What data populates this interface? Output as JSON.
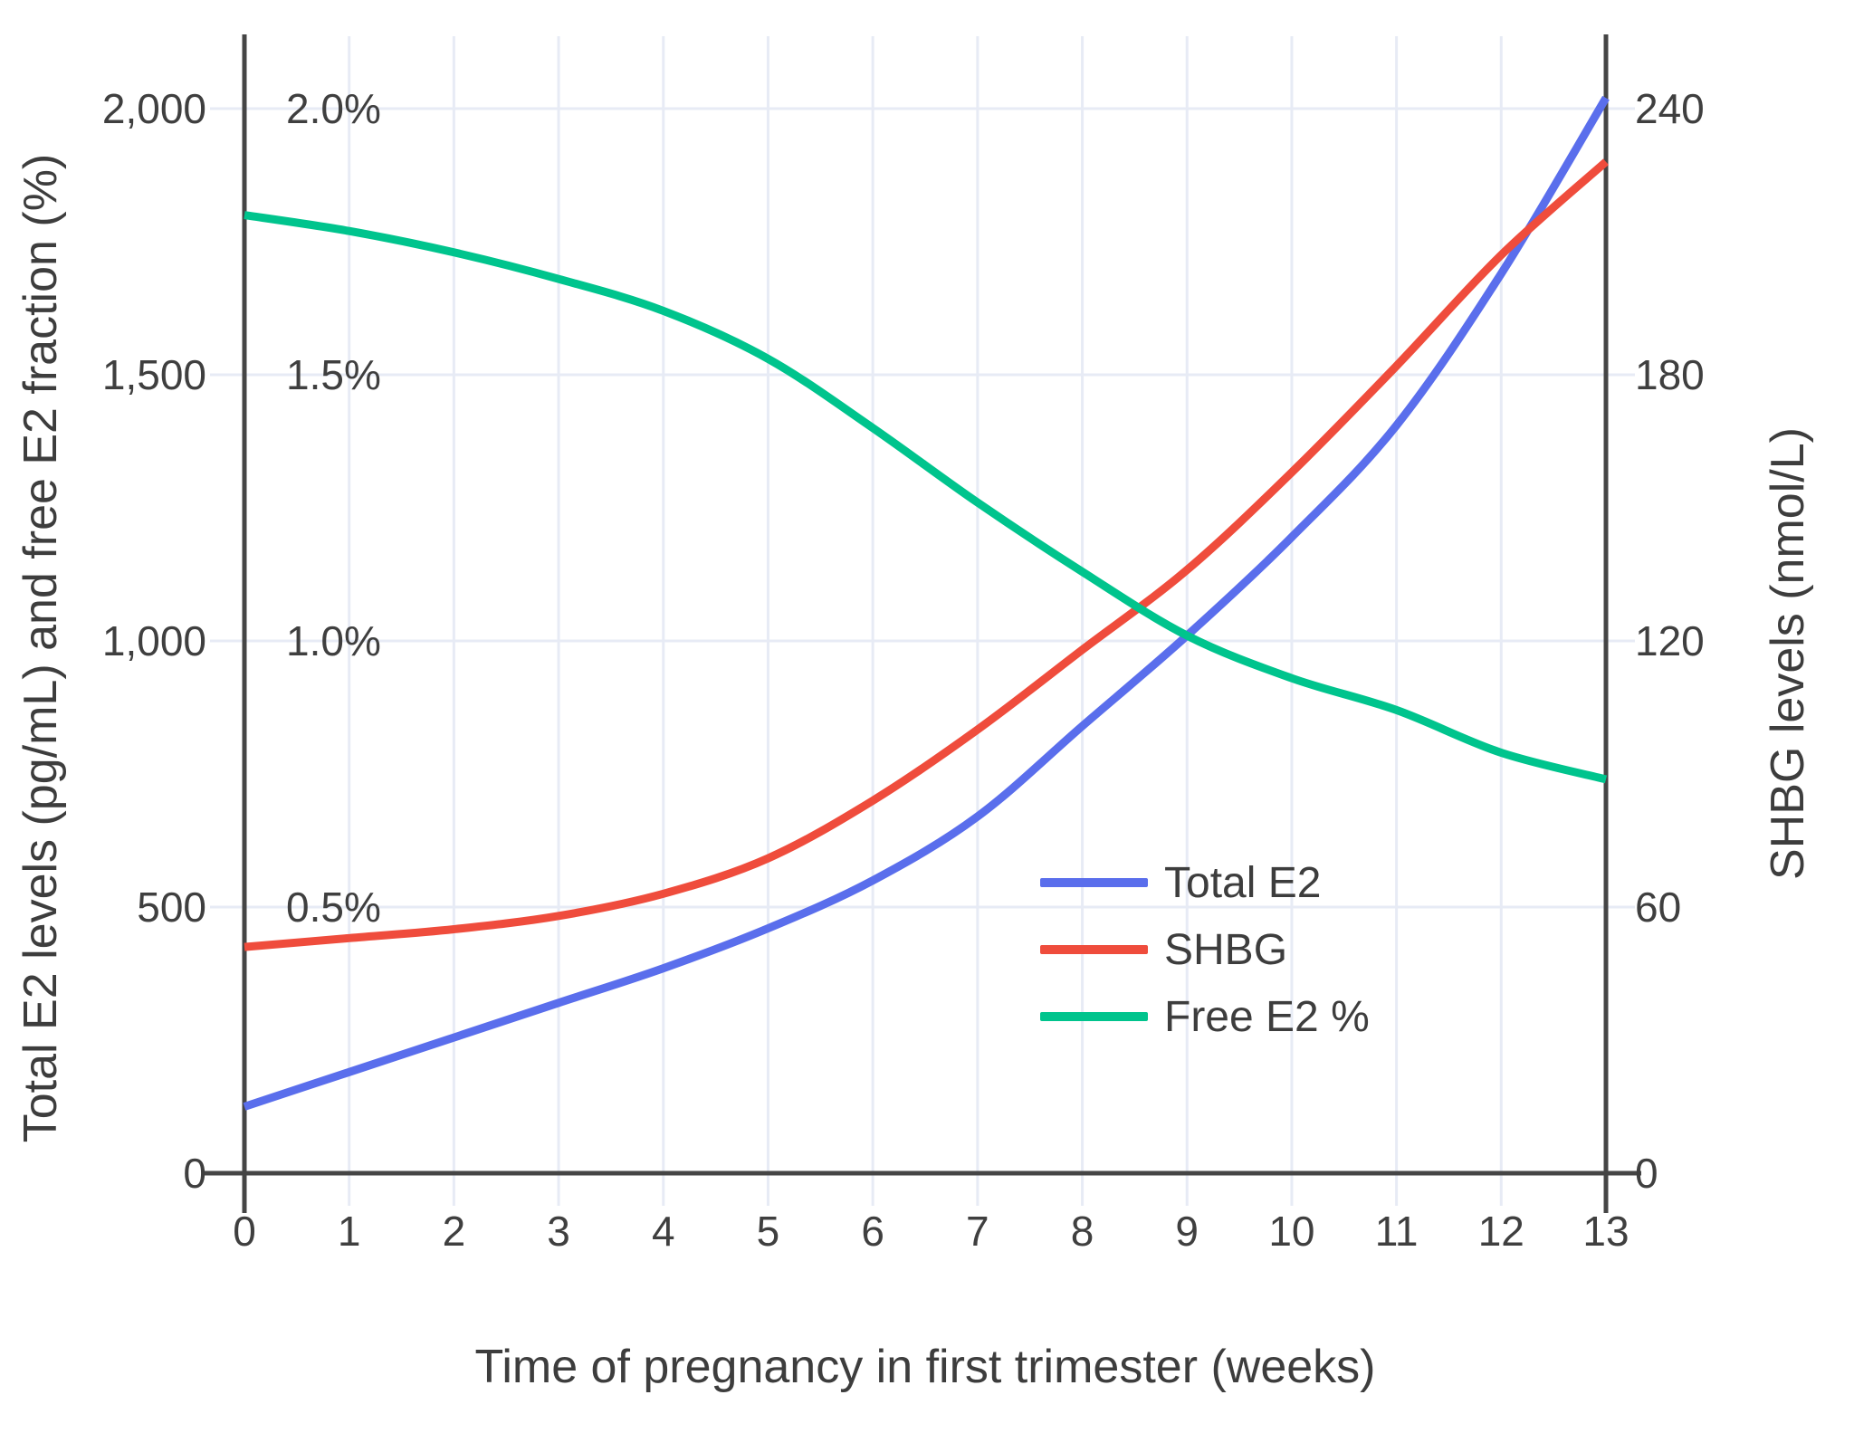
{
  "figure": {
    "background": "#ffffff",
    "text_color": "#3d3d3d",
    "axis_line_color": "#454545",
    "grid_color": "#e7ebf5"
  },
  "axes": {
    "x": {
      "title": "Time of pregnancy in first trimester (weeks)",
      "ticks": [
        "0",
        "1",
        "2",
        "3",
        "4",
        "5",
        "6",
        "7",
        "8",
        "9",
        "10",
        "11",
        "12",
        "13"
      ],
      "tick_values": [
        0,
        1,
        2,
        3,
        4,
        5,
        6,
        7,
        8,
        9,
        10,
        11,
        12,
        13
      ],
      "range": [
        0,
        13
      ]
    },
    "y_left": {
      "title": "Total E2 levels (pg/mL) and free E2 fraction (%)",
      "ticks": [
        "0",
        "500",
        "1,000",
        "1,500",
        "2,000"
      ],
      "tick_values": [
        0,
        500,
        1000,
        1500,
        2000
      ],
      "range": [
        0,
        2000
      ]
    },
    "y_left_pct": {
      "labels": [
        "0.5%",
        "1.0%",
        "1.5%",
        "2.0%"
      ],
      "values": [
        500,
        1000,
        1500,
        2000
      ]
    },
    "y_right": {
      "title": "SHBG levels (nmol/L)",
      "ticks": [
        "0",
        "60",
        "120",
        "180",
        "240"
      ],
      "tick_values": [
        0,
        60,
        120,
        180,
        240
      ],
      "range": [
        0,
        240
      ]
    }
  },
  "chart_data": {
    "type": "line",
    "title": "",
    "xlabel": "Time of pregnancy in first trimester (weeks)",
    "ylabel_left": "Total E2 levels (pg/mL) and free E2 fraction (%)",
    "ylabel_right": "SHBG levels (nmol/L)",
    "x": [
      0,
      1,
      2,
      3,
      4,
      5,
      6,
      7,
      8,
      9,
      10,
      11,
      12,
      13
    ],
    "grid": true,
    "legend_position": "inside-right-middle",
    "ylim_left": [
      0,
      2000
    ],
    "ylim_right": [
      0,
      240
    ],
    "ylim_pct": [
      0,
      2.0
    ],
    "series": [
      {
        "name": "Total E2",
        "axis": "left",
        "units": "pg/mL",
        "color": "#5a6eec",
        "values": [
          125,
          190,
          255,
          320,
          385,
          460,
          550,
          670,
          840,
          1010,
          1195,
          1405,
          1690,
          2020
        ]
      },
      {
        "name": "SHBG",
        "axis": "right",
        "units": "nmol/L",
        "color": "#ef4c3c",
        "values": [
          51,
          53,
          55,
          58,
          63,
          71,
          84,
          100,
          118,
          136,
          158,
          182,
          207,
          228
        ]
      },
      {
        "name": "Free E2 %",
        "axis": "left_pct",
        "units": "%",
        "color": "#00c48d",
        "values": [
          1.8,
          1.77,
          1.73,
          1.68,
          1.62,
          1.53,
          1.4,
          1.26,
          1.13,
          1.01,
          0.93,
          0.87,
          0.79,
          0.74
        ]
      }
    ]
  }
}
